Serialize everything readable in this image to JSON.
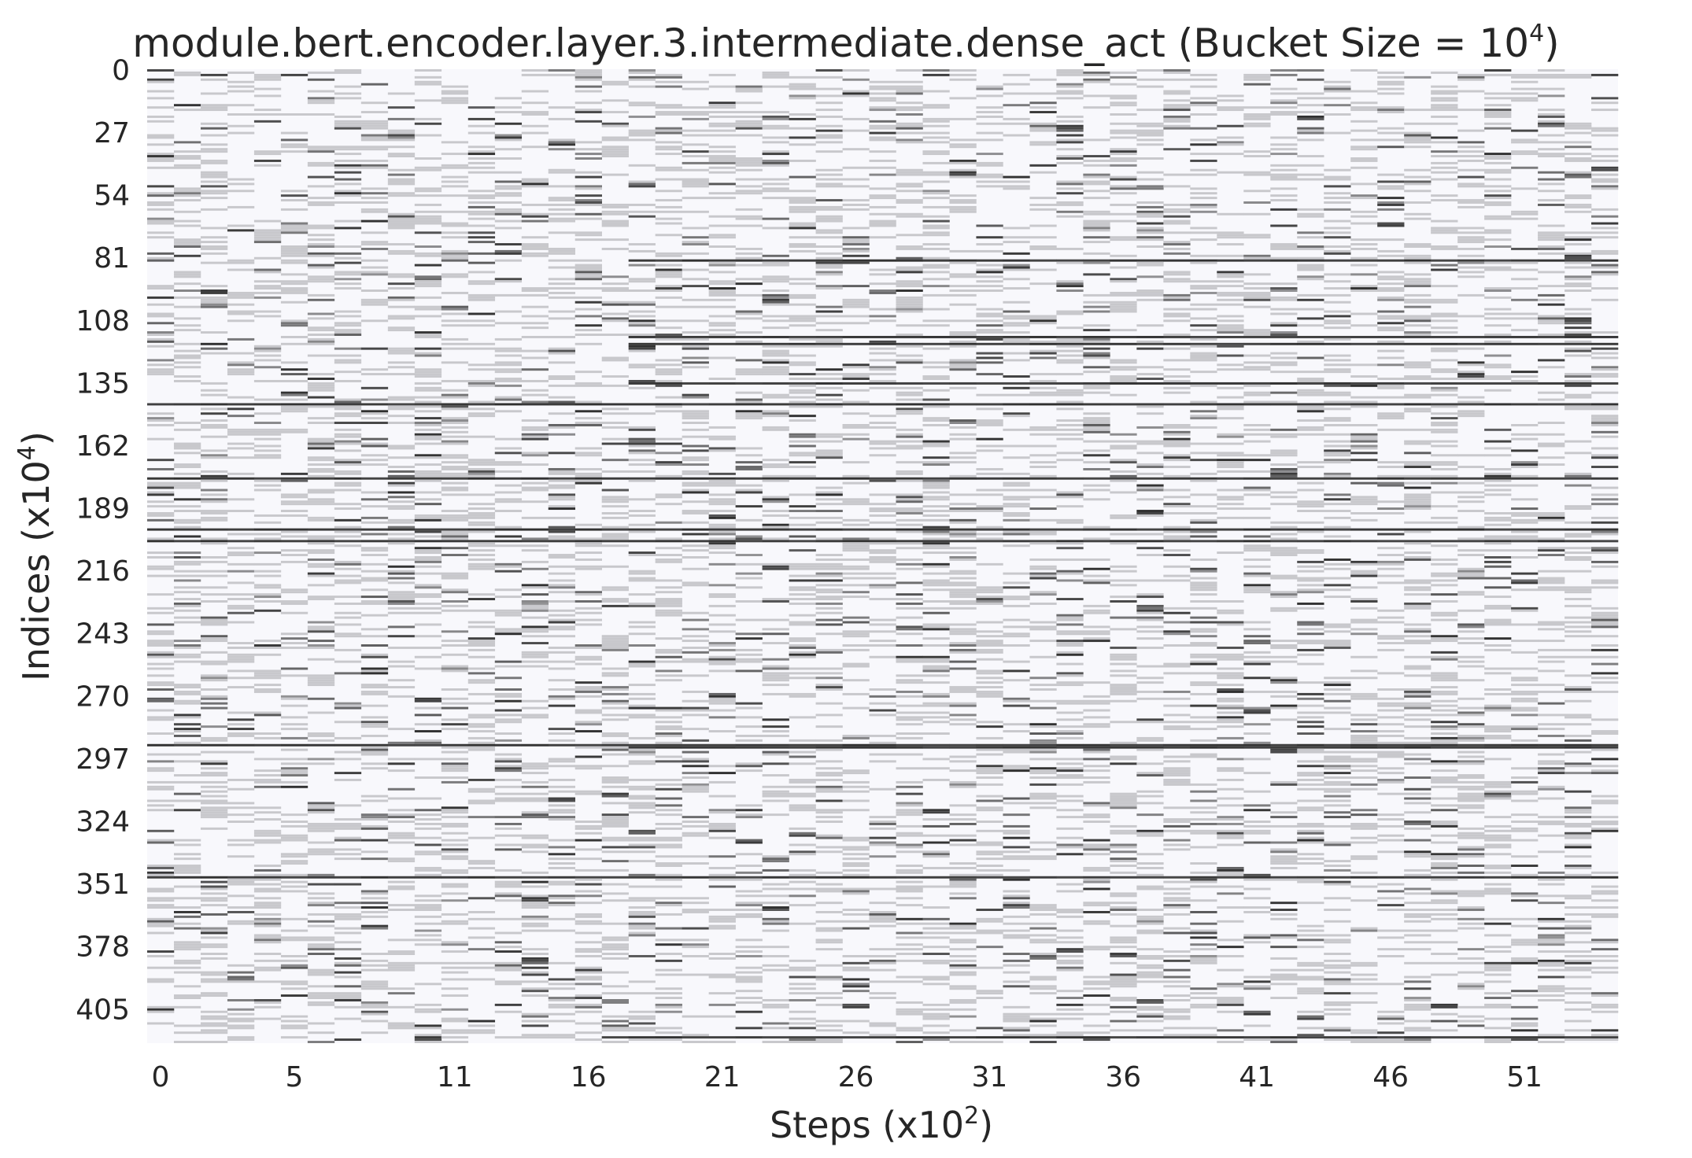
{
  "chart_data": {
    "type": "heatmap",
    "title": {
      "prefix": "module.bert.encoder.layer.3.intermediate.dense_act (Bucket Size = 10",
      "exponent": "4",
      "suffix": ")"
    },
    "xlabel": {
      "prefix": "Steps (x10",
      "exponent": "2",
      "suffix": ")"
    },
    "ylabel": {
      "prefix": "Indices (x10",
      "exponent": "4",
      "suffix": ")"
    },
    "x_tick_labels": [
      "0",
      "5",
      "11",
      "16",
      "21",
      "26",
      "31",
      "36",
      "41",
      "46",
      "51"
    ],
    "y_tick_labels": [
      "0",
      "27",
      "54",
      "81",
      "108",
      "135",
      "162",
      "189",
      "216",
      "243",
      "270",
      "297",
      "324",
      "351",
      "378",
      "405"
    ],
    "x_range": [
      0,
      55
    ],
    "y_range": [
      0,
      420
    ],
    "num_steps": 55,
    "num_buckets": 420,
    "colorbar": false,
    "colors": {
      "background": "#f8f8fc",
      "low": "#c8c8cc",
      "high": "#303030"
    },
    "always_dark_rows": [
      144,
      176,
      198,
      203,
      291,
      348
    ],
    "dark_rows_from_step": 18,
    "dark_rows_from_step_list": [
      82,
      115,
      118,
      135,
      292,
      417
    ]
  }
}
